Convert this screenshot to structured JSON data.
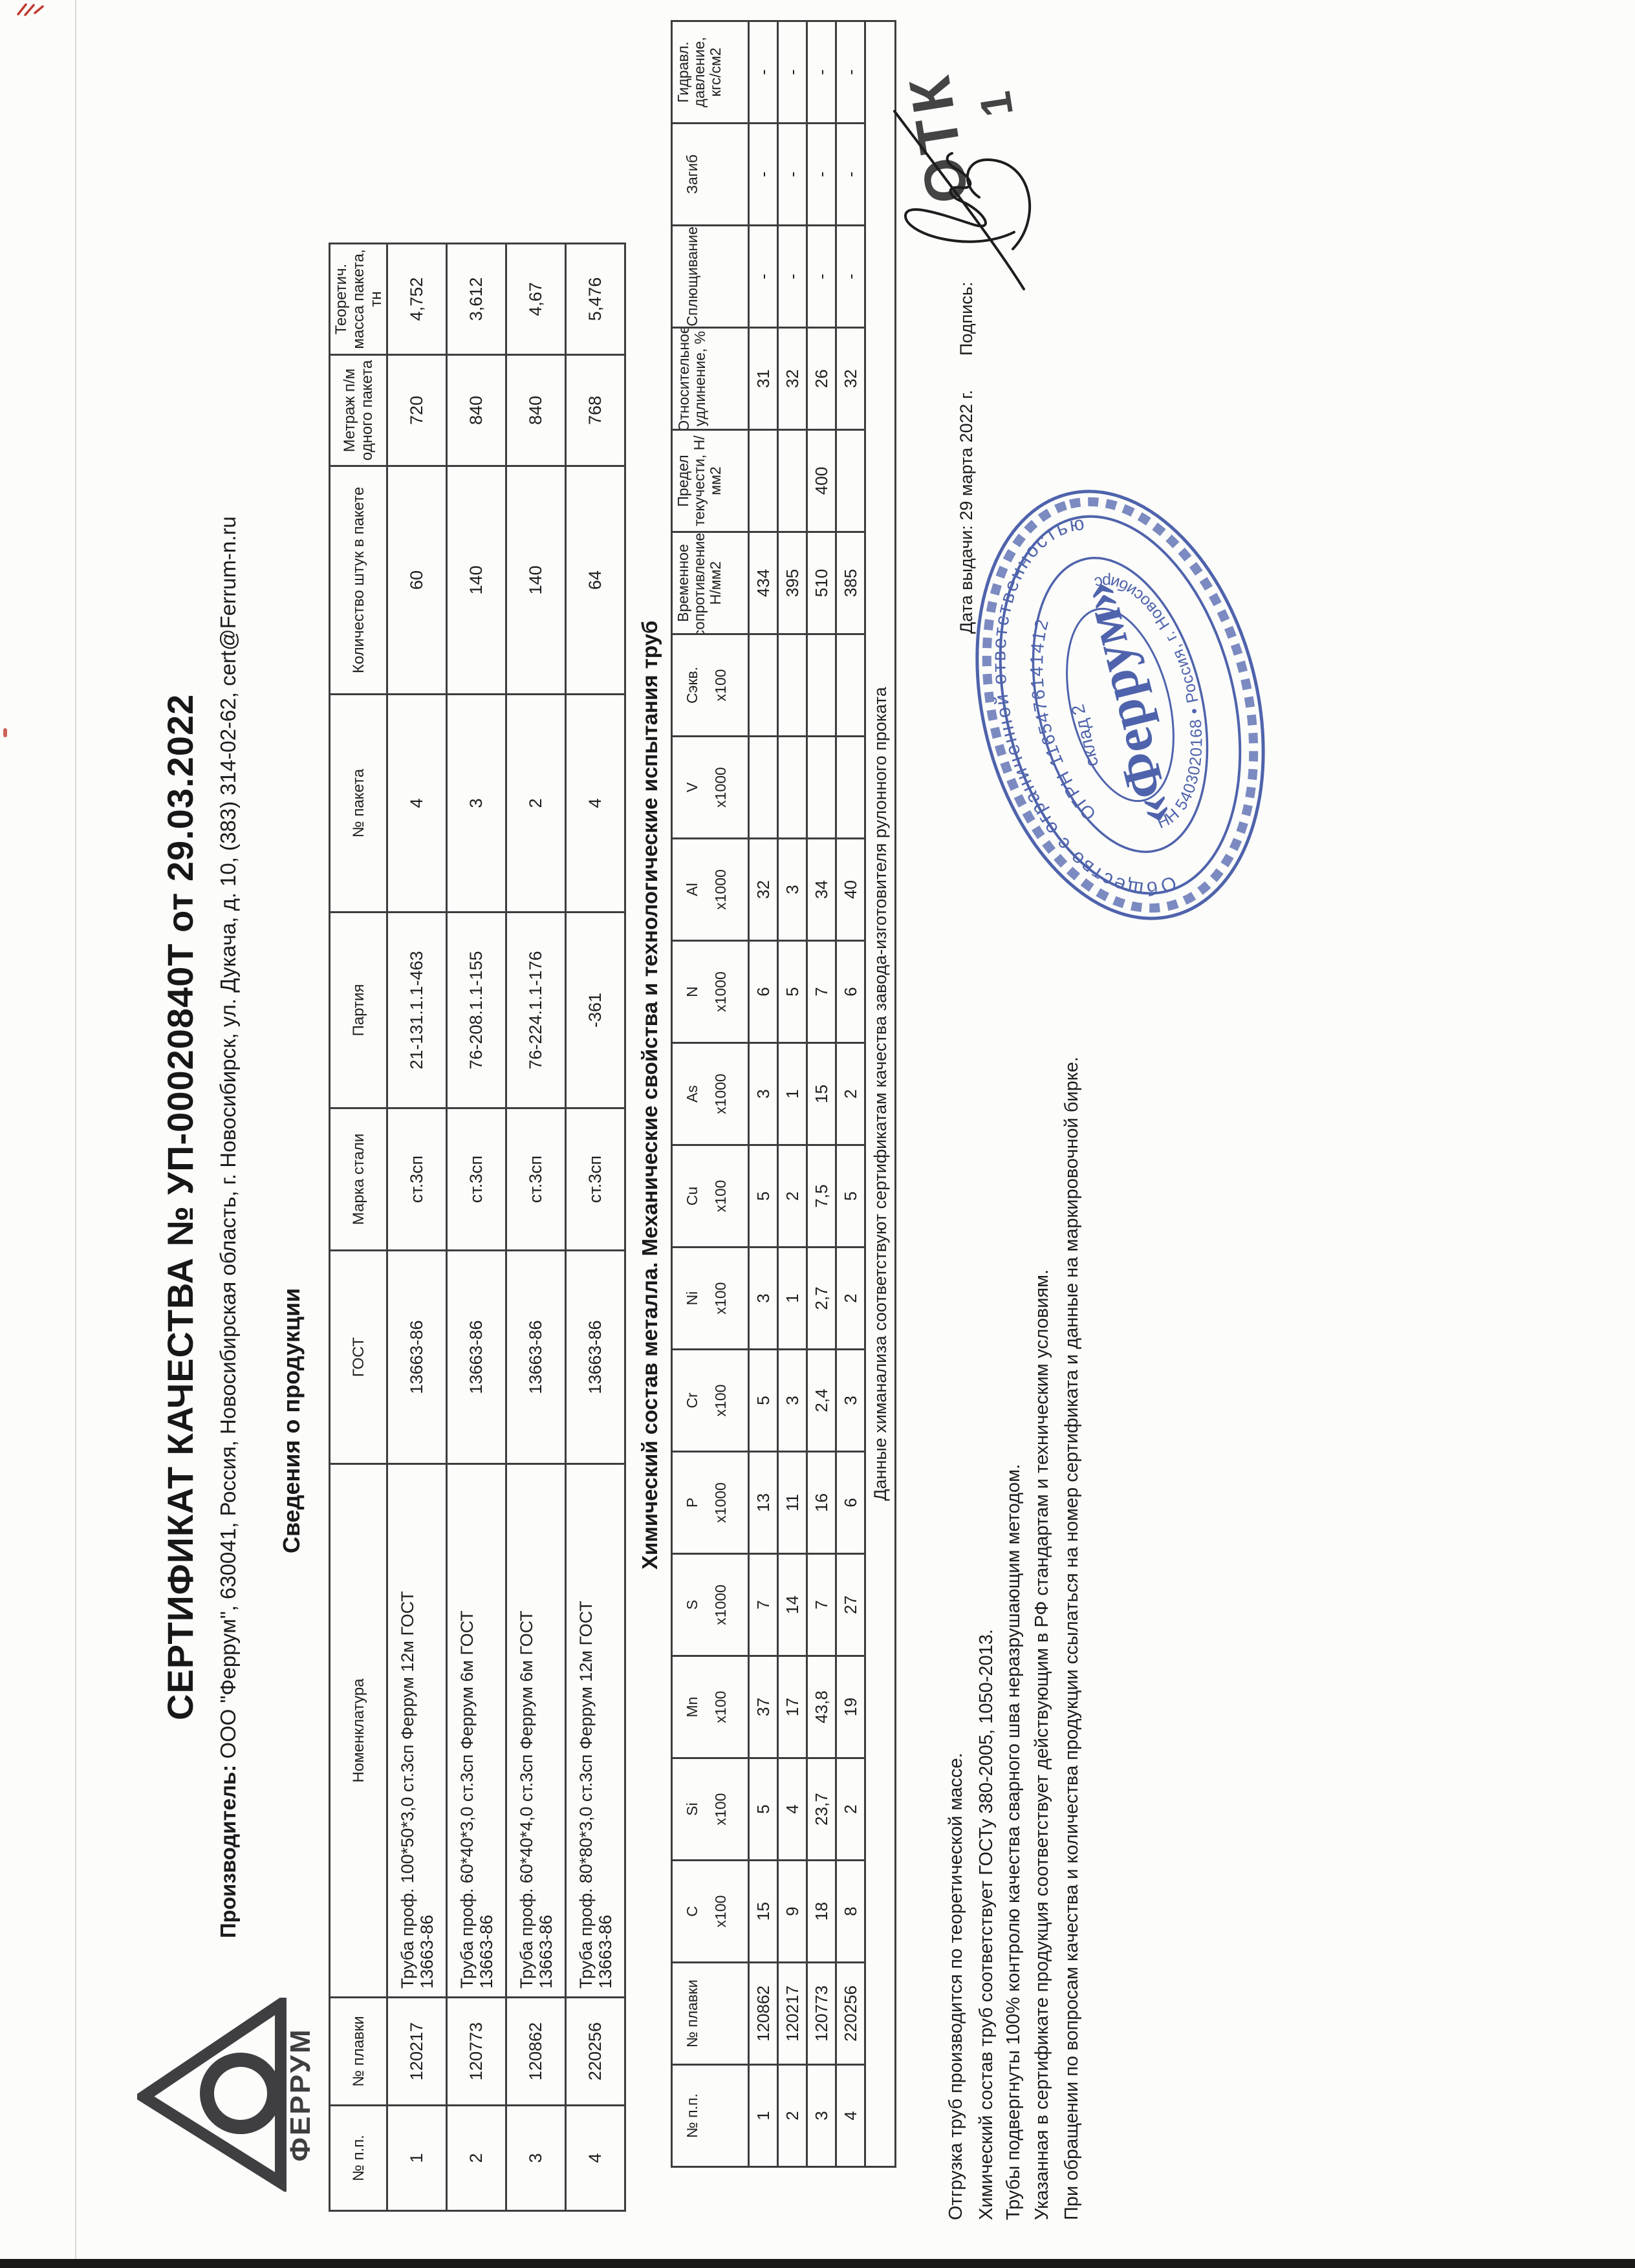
{
  "colors": {
    "ink": "#1f1f1f",
    "stamp_blue": "#4157a6",
    "logo_gray": "#3f3f42",
    "red_mark": "#c03b30"
  },
  "title": "СЕРТИФИКАТ КАЧЕСТВА № УП-00020840Т от 29.03.2022",
  "producer": {
    "label": "Производитель:",
    "value": "ООО \"Феррум\", 630041, Россия, Новосибирская область, г. Новосибирск, ул. Дукача, д. 10, (383) 314-02-62, cert@Ferrum-n.ru"
  },
  "logo": {
    "text": "ФЕРРУМ"
  },
  "section1_heading": "Сведения о продукции",
  "t1": {
    "headers": [
      "№ п.п.",
      "№ плавки",
      "Номенклатура",
      "ГОСТ",
      "Марка стали",
      "Партия",
      "№ пакета",
      "Количество штук в пакете",
      "Метраж п/м одного пакета",
      "Теоретич. масса пакета, тн"
    ],
    "rows": [
      [
        "1",
        "120217",
        "Труба проф. 100*50*3,0 ст.3сп Феррум 12м ГОСТ\n13663-86",
        "13663-86",
        "ст.3сп",
        "21-131.1.1-463",
        "4",
        "60",
        "720",
        "4,752"
      ],
      [
        "2",
        "120773",
        "Труба проф. 60*40*3,0 ст.3сп Феррум 6м ГОСТ\n13663-86",
        "13663-86",
        "ст.3сп",
        "76-208.1.1-155",
        "3",
        "140",
        "840",
        "3,612"
      ],
      [
        "3",
        "120862",
        "Труба проф. 60*40*4,0 ст.3сп Феррум 6м ГОСТ\n13663-86",
        "13663-86",
        "ст.3сп",
        "76-224.1.1-176",
        "2",
        "140",
        "840",
        "4,67"
      ],
      [
        "4",
        "220256",
        "Труба проф. 80*80*3,0 ст.3сп Феррум 12м ГОСТ\n13663-86",
        "13663-86",
        "ст.3сп",
        "-361",
        "4",
        "64",
        "768",
        "5,476"
      ]
    ]
  },
  "section2_heading": "Химический состав металла. Механические свойства  и технологические испытания труб",
  "t2": {
    "headers": [
      {
        "label": "№ п.п.",
        "mult": ""
      },
      {
        "label": "№ плавки",
        "mult": ""
      },
      {
        "label": "C",
        "mult": "х100"
      },
      {
        "label": "Si",
        "mult": "х100"
      },
      {
        "label": "Mn",
        "mult": "х100"
      },
      {
        "label": "S",
        "mult": "х1000"
      },
      {
        "label": "P",
        "mult": "х1000"
      },
      {
        "label": "Cr",
        "mult": "х100"
      },
      {
        "label": "Ni",
        "mult": "х100"
      },
      {
        "label": "Cu",
        "mult": "х100"
      },
      {
        "label": "As",
        "mult": "х1000"
      },
      {
        "label": "N",
        "mult": "х1000"
      },
      {
        "label": "Al",
        "mult": "х1000"
      },
      {
        "label": "V",
        "mult": "х1000"
      },
      {
        "label": "Сэкв.",
        "mult": "х100"
      },
      {
        "label": "Временное сопротивление, Н/мм2",
        "mult": ""
      },
      {
        "label": "Предел текучести, Н/мм2",
        "mult": ""
      },
      {
        "label": "Относительное удлинение, %",
        "mult": ""
      },
      {
        "label": "Сплющивание",
        "mult": ""
      },
      {
        "label": "Загиб",
        "mult": ""
      },
      {
        "label": "Гидравл. давление, кгс/см2",
        "mult": ""
      }
    ],
    "rows": [
      [
        "1",
        "120862",
        "15",
        "5",
        "37",
        "7",
        "13",
        "5",
        "3",
        "5",
        "3",
        "6",
        "32",
        "",
        "",
        "434",
        "",
        "31",
        "-",
        "-",
        "-"
      ],
      [
        "2",
        "120217",
        "9",
        "4",
        "17",
        "14",
        "11",
        "3",
        "1",
        "2",
        "1",
        "5",
        "3",
        "",
        "",
        "395",
        "",
        "32",
        "-",
        "-",
        "-"
      ],
      [
        "3",
        "120773",
        "18",
        "23,7",
        "43,8",
        "7",
        "16",
        "2,4",
        "2,7",
        "7,5",
        "15",
        "7",
        "34",
        "",
        "",
        "510",
        "400",
        "26",
        "-",
        "-",
        "-"
      ],
      [
        "4",
        "220256",
        "8",
        "2",
        "19",
        "27",
        "6",
        "3",
        "2",
        "5",
        "2",
        "6",
        "40",
        "",
        "",
        "385",
        "",
        "32",
        "-",
        "-",
        "-"
      ]
    ],
    "note": "Данные химанализа соответствуют сертификатам качества завода-изготовителя рулонного проката"
  },
  "footer_lines": [
    "Отгрузка труб производится по теоретической массе.",
    "Химический состав труб соответствует ГОСТу 380-2005, 1050-2013.",
    "Трубы подвергнуты 100% контролю качества сварного шва неразрушающим методом.",
    "Указанная в сертификате продукция соответствует действующим в РФ стандартам и техническим условиям.",
    "При обращении по вопросам качества и количества продукции ссылаться на номер сертификата и данные на маркировочной бирке."
  ],
  "issue": {
    "date_label": "Дата выдачи: 29 марта 2022 г.",
    "signature_label": "Подпись:"
  },
  "otk": {
    "word": "ОТК",
    "number": "1"
  },
  "stamp": {
    "ring_text": "Общество с ограниченной ответственностью",
    "ogrn": "ОГРН 1165476141412",
    "inn_city": "ИНН 5403020168  •  Россия, г. Новосибирск",
    "warehouse": "склад 2",
    "center": "«Феррум»"
  }
}
